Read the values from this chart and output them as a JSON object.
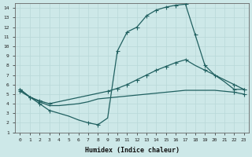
{
  "background_color": "#cde8e8",
  "grid_color": "#b8d8d8",
  "line_color": "#206060",
  "xlabel": "Humidex (Indice chaleur)",
  "xlim": [
    -0.5,
    23.5
  ],
  "ylim": [
    1,
    14.5
  ],
  "xtick_labels": [
    "0",
    "1",
    "2",
    "3",
    "4",
    "5",
    "6",
    "7",
    "8",
    "9",
    "10",
    "11",
    "12",
    "13",
    "14",
    "15",
    "16",
    "17",
    "18",
    "19",
    "20",
    "21",
    "22",
    "23"
  ],
  "xtick_vals": [
    0,
    1,
    2,
    3,
    4,
    5,
    6,
    7,
    8,
    9,
    10,
    11,
    12,
    13,
    14,
    15,
    16,
    17,
    18,
    19,
    20,
    21,
    22,
    23
  ],
  "ytick_vals": [
    1,
    2,
    3,
    4,
    5,
    6,
    7,
    8,
    9,
    10,
    11,
    12,
    13,
    14
  ],
  "line1_x": [
    0,
    1,
    2,
    3,
    4,
    5,
    6,
    7,
    8,
    9,
    10,
    11,
    12,
    13,
    14,
    15,
    16,
    17,
    18,
    19,
    20,
    21,
    22,
    23
  ],
  "line1_y": [
    5.5,
    4.7,
    4.0,
    3.3,
    3.0,
    2.7,
    2.3,
    2.0,
    1.8,
    2.5,
    9.5,
    11.5,
    12.0,
    13.2,
    13.8,
    14.1,
    14.3,
    14.4,
    11.2,
    8.0,
    7.0,
    6.3,
    5.5,
    5.5
  ],
  "line2_x": [
    0,
    1,
    2,
    3,
    9,
    10,
    11,
    12,
    13,
    14,
    15,
    16,
    17,
    18,
    19,
    20,
    21,
    22,
    23
  ],
  "line2_y": [
    5.5,
    4.7,
    4.3,
    4.0,
    5.3,
    5.6,
    6.0,
    6.5,
    7.0,
    7.5,
    7.9,
    8.3,
    8.6,
    8.0,
    7.5,
    7.0,
    6.5,
    6.0,
    5.5
  ],
  "line3_x": [
    0,
    1,
    2,
    3,
    4,
    5,
    6,
    7,
    8,
    9,
    10,
    11,
    12,
    13,
    14,
    15,
    16,
    17,
    18,
    19,
    20,
    21,
    22,
    23
  ],
  "line3_y": [
    5.3,
    4.7,
    4.2,
    3.8,
    3.8,
    3.9,
    4.0,
    4.2,
    4.5,
    4.6,
    4.7,
    4.8,
    4.9,
    5.0,
    5.1,
    5.2,
    5.3,
    5.4,
    5.4,
    5.4,
    5.4,
    5.3,
    5.2,
    5.0
  ],
  "line1_markers_x": [
    0,
    1,
    2,
    3,
    7,
    8,
    10,
    11,
    12,
    13,
    14,
    15,
    16,
    17,
    18,
    19,
    22,
    23
  ],
  "line1_markers_y": [
    5.5,
    4.7,
    4.0,
    3.3,
    2.0,
    1.8,
    9.5,
    11.5,
    12.0,
    13.2,
    13.8,
    14.1,
    14.3,
    14.4,
    11.2,
    8.0,
    5.5,
    5.5
  ],
  "line2_markers_x": [
    0,
    1,
    2,
    3,
    9,
    10,
    11,
    12,
    13,
    14,
    15,
    16,
    17,
    19,
    20,
    22,
    23
  ],
  "line2_markers_y": [
    5.5,
    4.7,
    4.3,
    4.0,
    5.3,
    5.6,
    6.0,
    6.5,
    7.0,
    7.5,
    7.9,
    8.3,
    8.6,
    7.5,
    7.0,
    6.0,
    5.5
  ],
  "line3_markers_x": [
    0,
    1,
    2,
    22,
    23
  ],
  "line3_markers_y": [
    5.3,
    4.7,
    4.2,
    5.2,
    5.0
  ]
}
